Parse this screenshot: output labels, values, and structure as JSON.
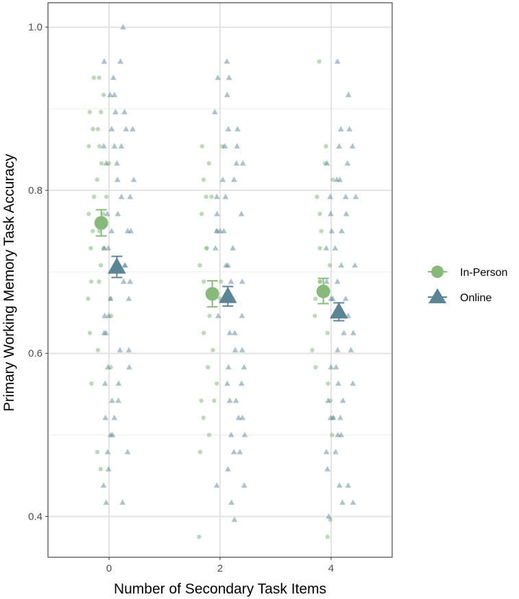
{
  "chart_data": {
    "type": "scatter",
    "xlabel": "Number of Secondary Task Items",
    "ylabel": "Primary Working Memory Task Accuracy",
    "x_ticks": [
      "0",
      "2",
      "4"
    ],
    "y_ticks": [
      "0.4",
      "0.6",
      "0.8",
      "1.0"
    ],
    "xlim": [
      -1.1,
      5.1
    ],
    "ylim": [
      0.35,
      1.03
    ],
    "grid": true,
    "legend_position": "right",
    "series": [
      {
        "name": "In-Person",
        "marker": "circle",
        "color": "#86b97b",
        "summary": [
          {
            "x": 0,
            "mean": 0.76,
            "low": 0.744,
            "high": 0.776
          },
          {
            "x": 2,
            "mean": 0.673,
            "low": 0.657,
            "high": 0.689
          },
          {
            "x": 4,
            "mean": 0.676,
            "low": 0.661,
            "high": 0.692
          }
        ],
        "points": [
          [
            0,
            0.938
          ],
          [
            0,
            0.896
          ],
          [
            0,
            0.896
          ],
          [
            0,
            0.875
          ],
          [
            0,
            0.875
          ],
          [
            0,
            0.854
          ],
          [
            0,
            0.854
          ],
          [
            0,
            0.833
          ],
          [
            0,
            0.833
          ],
          [
            0,
            0.813
          ],
          [
            0,
            0.792
          ],
          [
            0,
            0.792
          ],
          [
            0,
            0.771
          ],
          [
            0,
            0.771
          ],
          [
            0,
            0.75
          ],
          [
            0,
            0.75
          ],
          [
            0,
            0.729
          ],
          [
            0,
            0.729
          ],
          [
            0,
            0.708
          ],
          [
            0,
            0.688
          ],
          [
            0,
            0.688
          ],
          [
            0,
            0.667
          ],
          [
            0,
            0.667
          ],
          [
            0,
            0.646
          ],
          [
            0,
            0.625
          ],
          [
            0,
            0.604
          ],
          [
            0,
            0.583
          ],
          [
            0,
            0.563
          ],
          [
            0,
            0.479
          ],
          [
            0,
            0.458
          ],
          [
            0,
            0.917
          ],
          [
            0,
            0.938
          ],
          [
            2,
            0.854
          ],
          [
            2,
            0.854
          ],
          [
            2,
            0.833
          ],
          [
            2,
            0.813
          ],
          [
            2,
            0.792
          ],
          [
            2,
            0.792
          ],
          [
            2,
            0.771
          ],
          [
            2,
            0.75
          ],
          [
            2,
            0.729
          ],
          [
            2,
            0.729
          ],
          [
            2,
            0.708
          ],
          [
            2,
            0.688
          ],
          [
            2,
            0.688
          ],
          [
            2,
            0.667
          ],
          [
            2,
            0.646
          ],
          [
            2,
            0.625
          ],
          [
            2,
            0.604
          ],
          [
            2,
            0.583
          ],
          [
            2,
            0.563
          ],
          [
            2,
            0.542
          ],
          [
            2,
            0.542
          ],
          [
            2,
            0.521
          ],
          [
            2,
            0.5
          ],
          [
            2,
            0.479
          ],
          [
            2,
            0.375
          ],
          [
            4,
            0.958
          ],
          [
            4,
            0.854
          ],
          [
            4,
            0.833
          ],
          [
            4,
            0.813
          ],
          [
            4,
            0.792
          ],
          [
            4,
            0.771
          ],
          [
            4,
            0.75
          ],
          [
            4,
            0.729
          ],
          [
            4,
            0.708
          ],
          [
            4,
            0.688
          ],
          [
            4,
            0.688
          ],
          [
            4,
            0.667
          ],
          [
            4,
            0.646
          ],
          [
            4,
            0.625
          ],
          [
            4,
            0.604
          ],
          [
            4,
            0.583
          ],
          [
            4,
            0.563
          ],
          [
            4,
            0.542
          ],
          [
            4,
            0.521
          ],
          [
            4,
            0.5
          ],
          [
            4,
            0.396
          ],
          [
            4,
            0.375
          ]
        ]
      },
      {
        "name": "Online",
        "marker": "triangle",
        "color": "#5b8595",
        "summary": [
          {
            "x": 0,
            "mean": 0.706,
            "low": 0.693,
            "high": 0.719
          },
          {
            "x": 2,
            "mean": 0.67,
            "low": 0.658,
            "high": 0.682
          },
          {
            "x": 4,
            "mean": 0.651,
            "low": 0.64,
            "high": 0.662
          }
        ],
        "points": [
          [
            0,
            1.0
          ],
          [
            0,
            0.958
          ],
          [
            0,
            0.958
          ],
          [
            0,
            0.938
          ],
          [
            0,
            0.917
          ],
          [
            0,
            0.917
          ],
          [
            0,
            0.896
          ],
          [
            0,
            0.896
          ],
          [
            0,
            0.875
          ],
          [
            0,
            0.875
          ],
          [
            0,
            0.875
          ],
          [
            0,
            0.854
          ],
          [
            0,
            0.854
          ],
          [
            0,
            0.854
          ],
          [
            0,
            0.833
          ],
          [
            0,
            0.833
          ],
          [
            0,
            0.813
          ],
          [
            0,
            0.813
          ],
          [
            0,
            0.792
          ],
          [
            0,
            0.792
          ],
          [
            0,
            0.771
          ],
          [
            0,
            0.771
          ],
          [
            0,
            0.75
          ],
          [
            0,
            0.75
          ],
          [
            0,
            0.75
          ],
          [
            0,
            0.729
          ],
          [
            0,
            0.729
          ],
          [
            0,
            0.708
          ],
          [
            0,
            0.708
          ],
          [
            0,
            0.688
          ],
          [
            0,
            0.688
          ],
          [
            0,
            0.667
          ],
          [
            0,
            0.667
          ],
          [
            0,
            0.646
          ],
          [
            0,
            0.646
          ],
          [
            0,
            0.625
          ],
          [
            0,
            0.625
          ],
          [
            0,
            0.604
          ],
          [
            0,
            0.604
          ],
          [
            0,
            0.583
          ],
          [
            0,
            0.583
          ],
          [
            0,
            0.563
          ],
          [
            0,
            0.563
          ],
          [
            0,
            0.542
          ],
          [
            0,
            0.542
          ],
          [
            0,
            0.521
          ],
          [
            0,
            0.521
          ],
          [
            0,
            0.5
          ],
          [
            0,
            0.5
          ],
          [
            0,
            0.479
          ],
          [
            0,
            0.479
          ],
          [
            0,
            0.458
          ],
          [
            0,
            0.438
          ],
          [
            0,
            0.417
          ],
          [
            0,
            0.417
          ],
          [
            2,
            0.958
          ],
          [
            2,
            0.938
          ],
          [
            2,
            0.938
          ],
          [
            2,
            0.917
          ],
          [
            2,
            0.896
          ],
          [
            2,
            0.875
          ],
          [
            2,
            0.875
          ],
          [
            2,
            0.854
          ],
          [
            2,
            0.854
          ],
          [
            2,
            0.833
          ],
          [
            2,
            0.833
          ],
          [
            2,
            0.813
          ],
          [
            2,
            0.813
          ],
          [
            2,
            0.792
          ],
          [
            2,
            0.792
          ],
          [
            2,
            0.771
          ],
          [
            2,
            0.771
          ],
          [
            2,
            0.75
          ],
          [
            2,
            0.75
          ],
          [
            2,
            0.75
          ],
          [
            2,
            0.729
          ],
          [
            2,
            0.729
          ],
          [
            2,
            0.708
          ],
          [
            2,
            0.708
          ],
          [
            2,
            0.688
          ],
          [
            2,
            0.688
          ],
          [
            2,
            0.667
          ],
          [
            2,
            0.667
          ],
          [
            2,
            0.646
          ],
          [
            2,
            0.646
          ],
          [
            2,
            0.625
          ],
          [
            2,
            0.625
          ],
          [
            2,
            0.604
          ],
          [
            2,
            0.604
          ],
          [
            2,
            0.583
          ],
          [
            2,
            0.583
          ],
          [
            2,
            0.563
          ],
          [
            2,
            0.563
          ],
          [
            2,
            0.542
          ],
          [
            2,
            0.542
          ],
          [
            2,
            0.521
          ],
          [
            2,
            0.521
          ],
          [
            2,
            0.5
          ],
          [
            2,
            0.5
          ],
          [
            2,
            0.479
          ],
          [
            2,
            0.479
          ],
          [
            2,
            0.458
          ],
          [
            2,
            0.438
          ],
          [
            2,
            0.438
          ],
          [
            2,
            0.417
          ],
          [
            2,
            0.396
          ],
          [
            4,
            0.958
          ],
          [
            4,
            0.917
          ],
          [
            4,
            0.875
          ],
          [
            4,
            0.875
          ],
          [
            4,
            0.854
          ],
          [
            4,
            0.854
          ],
          [
            4,
            0.833
          ],
          [
            4,
            0.833
          ],
          [
            4,
            0.813
          ],
          [
            4,
            0.813
          ],
          [
            4,
            0.792
          ],
          [
            4,
            0.792
          ],
          [
            4,
            0.792
          ],
          [
            4,
            0.771
          ],
          [
            4,
            0.771
          ],
          [
            4,
            0.75
          ],
          [
            4,
            0.75
          ],
          [
            4,
            0.729
          ],
          [
            4,
            0.729
          ],
          [
            4,
            0.708
          ],
          [
            4,
            0.708
          ],
          [
            4,
            0.688
          ],
          [
            4,
            0.688
          ],
          [
            4,
            0.667
          ],
          [
            4,
            0.667
          ],
          [
            4,
            0.667
          ],
          [
            4,
            0.646
          ],
          [
            4,
            0.646
          ],
          [
            4,
            0.625
          ],
          [
            4,
            0.625
          ],
          [
            4,
            0.604
          ],
          [
            4,
            0.604
          ],
          [
            4,
            0.583
          ],
          [
            4,
            0.583
          ],
          [
            4,
            0.563
          ],
          [
            4,
            0.563
          ],
          [
            4,
            0.542
          ],
          [
            4,
            0.542
          ],
          [
            4,
            0.521
          ],
          [
            4,
            0.521
          ],
          [
            4,
            0.521
          ],
          [
            4,
            0.5
          ],
          [
            4,
            0.5
          ],
          [
            4,
            0.479
          ],
          [
            4,
            0.479
          ],
          [
            4,
            0.458
          ],
          [
            4,
            0.438
          ],
          [
            4,
            0.438
          ],
          [
            4,
            0.417
          ],
          [
            4,
            0.417
          ],
          [
            4,
            0.4
          ]
        ]
      }
    ]
  }
}
